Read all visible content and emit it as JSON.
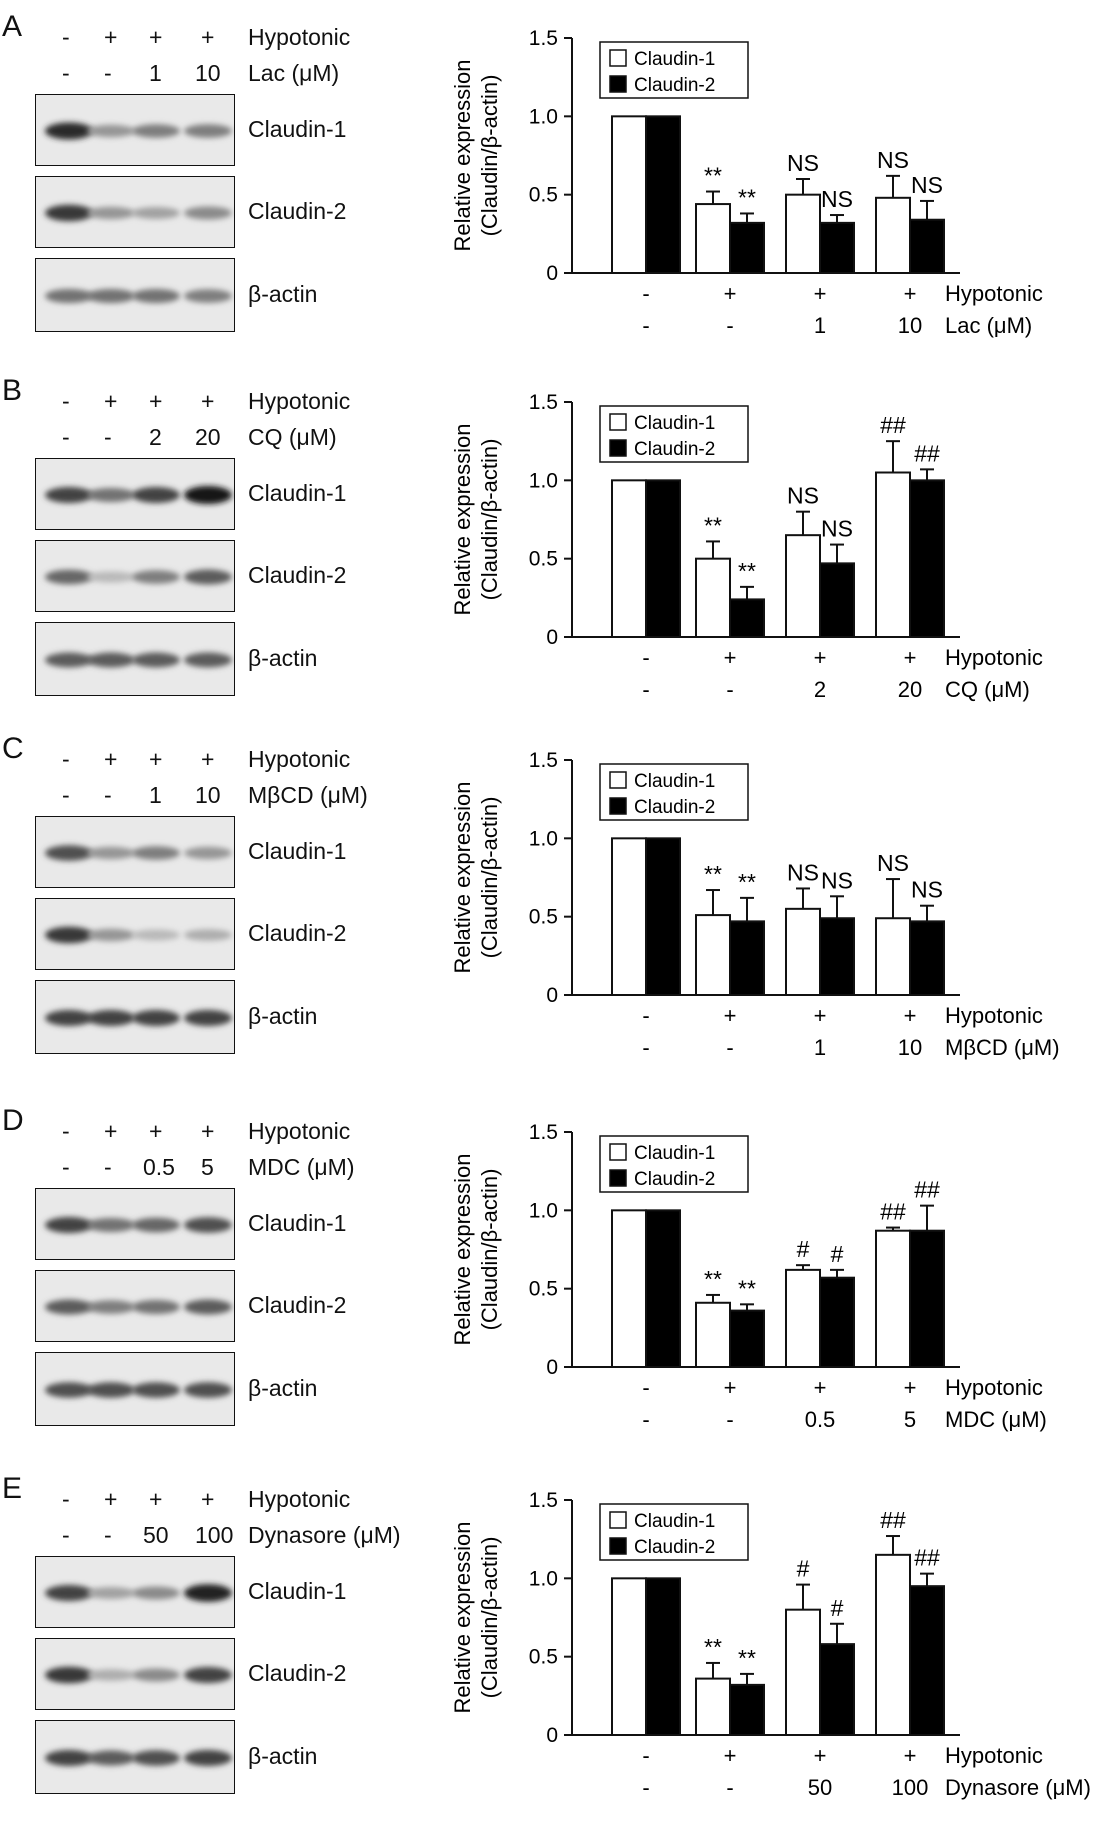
{
  "panels": [
    {
      "label": "A",
      "blot": {
        "hypotonic_row": [
          "-",
          "+",
          "+",
          "+"
        ],
        "hypotonic_label": "Hypotonic",
        "dose_row": [
          "-",
          "-",
          "1",
          "10"
        ],
        "dose_label": "Lac (μM)",
        "bands": [
          {
            "name": "Claudin-1",
            "intensity": [
              0.9,
              0.45,
              0.55,
              0.55
            ]
          },
          {
            "name": "Claudin-2",
            "intensity": [
              0.85,
              0.45,
              0.4,
              0.5
            ]
          },
          {
            "name": "β-actin",
            "intensity": [
              0.6,
              0.6,
              0.6,
              0.55
            ]
          }
        ]
      },
      "chart_data": {
        "type": "bar",
        "ylabel": "Relative expression",
        "ylabel2": "(Claudin/β-actin)",
        "ylim": [
          0,
          1.5
        ],
        "yticks": [
          "0",
          "0.5",
          "1.0",
          "1.5"
        ],
        "series": [
          {
            "name": "Claudin-1",
            "values": [
              1.0,
              0.44,
              0.5,
              0.48
            ],
            "errors": [
              0,
              0.08,
              0.1,
              0.14
            ]
          },
          {
            "name": "Claudin-2",
            "values": [
              1.0,
              0.32,
              0.32,
              0.34
            ],
            "errors": [
              0,
              0.06,
              0.05,
              0.12
            ]
          }
        ],
        "annotations": [
          [
            "",
            ""
          ],
          [
            "**",
            "**"
          ],
          [
            "NS",
            "NS"
          ],
          [
            "NS",
            "NS"
          ]
        ],
        "xrow1": [
          "-",
          "+",
          "+",
          "+"
        ],
        "xrow1_label": "Hypotonic",
        "xrow2": [
          "-",
          "-",
          "1",
          "10"
        ],
        "xrow2_label": "Lac (μM)",
        "legend": "top-left"
      }
    },
    {
      "label": "B",
      "blot": {
        "hypotonic_row": [
          "-",
          "+",
          "+",
          "+"
        ],
        "hypotonic_label": "Hypotonic",
        "dose_row": [
          "-",
          "-",
          "2",
          "20"
        ],
        "dose_label": "CQ (μM)",
        "bands": [
          {
            "name": "Claudin-1",
            "intensity": [
              0.8,
              0.6,
              0.8,
              1.0
            ]
          },
          {
            "name": "Claudin-2",
            "intensity": [
              0.65,
              0.3,
              0.55,
              0.7
            ]
          },
          {
            "name": "β-actin",
            "intensity": [
              0.7,
              0.7,
              0.7,
              0.7
            ]
          }
        ]
      },
      "chart_data": {
        "type": "bar",
        "ylabel": "Relative expression",
        "ylabel2": "(Claudin/β-actin)",
        "ylim": [
          0,
          1.5
        ],
        "yticks": [
          "0",
          "0.5",
          "1.0",
          "1.5"
        ],
        "series": [
          {
            "name": "Claudin-1",
            "values": [
              1.0,
              0.5,
              0.65,
              1.05
            ],
            "errors": [
              0,
              0.11,
              0.15,
              0.2
            ]
          },
          {
            "name": "Claudin-2",
            "values": [
              1.0,
              0.24,
              0.47,
              1.0
            ],
            "errors": [
              0,
              0.08,
              0.12,
              0.07
            ]
          }
        ],
        "annotations": [
          [
            "",
            ""
          ],
          [
            "**",
            "**"
          ],
          [
            "NS",
            "NS"
          ],
          [
            "##",
            "##"
          ]
        ],
        "xrow1": [
          "-",
          "+",
          "+",
          "+"
        ],
        "xrow1_label": "Hypotonic",
        "xrow2": [
          "-",
          "-",
          "2",
          "20"
        ],
        "xrow2_label": "CQ (μM)",
        "legend": "top-left"
      }
    },
    {
      "label": "C",
      "blot": {
        "hypotonic_row": [
          "-",
          "+",
          "+",
          "+"
        ],
        "hypotonic_label": "Hypotonic",
        "dose_row": [
          "-",
          "-",
          "1",
          "10"
        ],
        "dose_label": "MβCD (μM)",
        "bands": [
          {
            "name": "Claudin-1",
            "intensity": [
              0.75,
              0.45,
              0.55,
              0.45
            ]
          },
          {
            "name": "Claudin-2",
            "intensity": [
              0.85,
              0.45,
              0.3,
              0.35
            ]
          },
          {
            "name": "β-actin",
            "intensity": [
              0.8,
              0.8,
              0.8,
              0.8
            ]
          }
        ]
      },
      "chart_data": {
        "type": "bar",
        "ylabel": "Relative expression",
        "ylabel2": "(Claudin/β-actin)",
        "ylim": [
          0,
          1.5
        ],
        "yticks": [
          "0",
          "0.5",
          "1.0",
          "1.5"
        ],
        "series": [
          {
            "name": "Claudin-1",
            "values": [
              1.0,
              0.51,
              0.55,
              0.49
            ],
            "errors": [
              0,
              0.16,
              0.13,
              0.25
            ]
          },
          {
            "name": "Claudin-2",
            "values": [
              1.0,
              0.47,
              0.49,
              0.47
            ],
            "errors": [
              0,
              0.15,
              0.14,
              0.1
            ]
          }
        ],
        "annotations": [
          [
            "",
            ""
          ],
          [
            "**",
            "**"
          ],
          [
            "NS",
            "NS"
          ],
          [
            "NS",
            "NS"
          ]
        ],
        "xrow1": [
          "-",
          "+",
          "+",
          "+"
        ],
        "xrow1_label": "Hypotonic",
        "xrow2": [
          "-",
          "-",
          "1",
          "10"
        ],
        "xrow2_label": "MβCD (μM)",
        "legend": "top-left"
      }
    },
    {
      "label": "D",
      "blot": {
        "hypotonic_row": [
          "-",
          "+",
          "+",
          "+"
        ],
        "hypotonic_label": "Hypotonic",
        "dose_row": [
          "-",
          "-",
          "0.5",
          "5"
        ],
        "dose_label": "MDC (μM)",
        "bands": [
          {
            "name": "Claudin-1",
            "intensity": [
              0.8,
              0.6,
              0.65,
              0.75
            ]
          },
          {
            "name": "Claudin-2",
            "intensity": [
              0.7,
              0.55,
              0.6,
              0.7
            ]
          },
          {
            "name": "β-actin",
            "intensity": [
              0.75,
              0.75,
              0.75,
              0.75
            ]
          }
        ]
      },
      "chart_data": {
        "type": "bar",
        "ylabel": "Relative expression",
        "ylabel2": "(Claudin/β-actin)",
        "ylim": [
          0,
          1.5
        ],
        "yticks": [
          "0",
          "0.5",
          "1.0",
          "1.5"
        ],
        "series": [
          {
            "name": "Claudin-1",
            "values": [
              1.0,
              0.41,
              0.62,
              0.87
            ],
            "errors": [
              0,
              0.05,
              0.03,
              0.02
            ]
          },
          {
            "name": "Claudin-2",
            "values": [
              1.0,
              0.36,
              0.57,
              0.87
            ],
            "errors": [
              0,
              0.04,
              0.05,
              0.16
            ]
          }
        ],
        "annotations": [
          [
            "",
            ""
          ],
          [
            "**",
            "**"
          ],
          [
            "#",
            "#"
          ],
          [
            "##",
            "##"
          ]
        ],
        "xrow1": [
          "-",
          "+",
          "+",
          "+"
        ],
        "xrow1_label": "Hypotonic",
        "xrow2": [
          "-",
          "-",
          "0.5",
          "5"
        ],
        "xrow2_label": "MDC (μM)",
        "legend": "top-left"
      }
    },
    {
      "label": "E",
      "blot": {
        "hypotonic_row": [
          "-",
          "+",
          "+",
          "+"
        ],
        "hypotonic_label": "Hypotonic",
        "dose_row": [
          "-",
          "-",
          "50",
          "100"
        ],
        "dose_label": "Dynasore (μM)",
        "bands": [
          {
            "name": "Claudin-1",
            "intensity": [
              0.8,
              0.4,
              0.5,
              0.95
            ]
          },
          {
            "name": "Claudin-2",
            "intensity": [
              0.85,
              0.35,
              0.5,
              0.8
            ]
          },
          {
            "name": "β-actin",
            "intensity": [
              0.8,
              0.7,
              0.75,
              0.8
            ]
          }
        ]
      },
      "chart_data": {
        "type": "bar",
        "ylabel": "Relative expression",
        "ylabel2": "(Claudin/β-actin)",
        "ylim": [
          0,
          1.5
        ],
        "yticks": [
          "0",
          "0.5",
          "1.0",
          "1.5"
        ],
        "series": [
          {
            "name": "Claudin-1",
            "values": [
              1.0,
              0.36,
              0.8,
              1.15
            ],
            "errors": [
              0,
              0.1,
              0.16,
              0.12
            ]
          },
          {
            "name": "Claudin-2",
            "values": [
              1.0,
              0.32,
              0.58,
              0.95
            ],
            "errors": [
              0,
              0.07,
              0.13,
              0.08
            ]
          }
        ],
        "annotations": [
          [
            "",
            ""
          ],
          [
            "**",
            "**"
          ],
          [
            "#",
            "#"
          ],
          [
            "##",
            "##"
          ]
        ],
        "xrow1": [
          "-",
          "+",
          "+",
          "+"
        ],
        "xrow1_label": "Hypotonic",
        "xrow2": [
          "-",
          "-",
          "50",
          "100"
        ],
        "xrow2_label": "Dynasore (μM)",
        "legend": "top-left"
      }
    }
  ]
}
